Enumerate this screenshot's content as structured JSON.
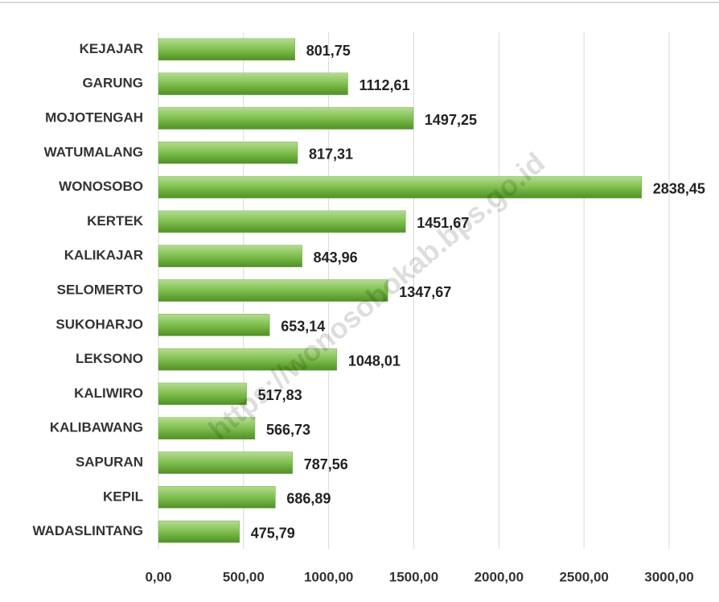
{
  "chart_data": {
    "type": "bar",
    "orientation": "horizontal",
    "categories": [
      "KEJAJAR",
      "GARUNG",
      "MOJOTENGAH",
      "WATUMALANG",
      "WONOSOBO",
      "KERTEK",
      "KALIKAJAR",
      "SELOMERTO",
      "SUKOHARJO",
      "LEKSONO",
      "KALIWIRO",
      "KALIBAWANG",
      "SAPURAN",
      "KEPIL",
      "WADASLINTANG"
    ],
    "values": [
      801.75,
      1112.61,
      1497.25,
      817.31,
      2838.45,
      1451.67,
      843.96,
      1347.67,
      653.14,
      1048.01,
      517.83,
      566.73,
      787.56,
      686.89,
      475.79
    ],
    "value_labels": [
      "801,75",
      "1112,61",
      "1497,25",
      "817,31",
      "2838,45",
      "1451,67",
      "843,96",
      "1347,67",
      "653,14",
      "1048,01",
      "517,83",
      "566,73",
      "787,56",
      "686,89",
      "475,79"
    ],
    "color": "#70ad47",
    "xlim": [
      0,
      3000
    ],
    "xticks": [
      {
        "value": 0,
        "label": "0,00"
      },
      {
        "value": 500,
        "label": "500,00"
      },
      {
        "value": 1000,
        "label": "1000,00"
      },
      {
        "value": 1500,
        "label": "1500,00"
      },
      {
        "value": 2000,
        "label": "2000,00"
      },
      {
        "value": 2500,
        "label": "2500,00"
      },
      {
        "value": 3000,
        "label": "3000,00"
      }
    ],
    "grid": true,
    "annotations": [
      "https://wonosobokab.bps.go.id"
    ]
  }
}
